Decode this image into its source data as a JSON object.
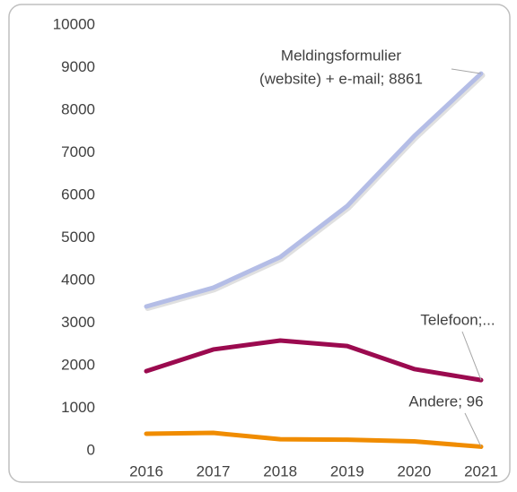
{
  "chart_data": {
    "type": "line",
    "categories": [
      "2016",
      "2017",
      "2018",
      "2019",
      "2020",
      "2021"
    ],
    "series": [
      {
        "color": "#b4bde6",
        "values": [
          3390,
          3830,
          4550,
          5750,
          7390,
          8861
        ]
      },
      {
        "color": "#9b0a4f",
        "values": [
          1870,
          2380,
          2590,
          2460,
          1920,
          1660
        ]
      },
      {
        "color": "#f08c00",
        "values": [
          400,
          420,
          270,
          260,
          220,
          96
        ]
      }
    ],
    "annotations": [
      {
        "series": 0,
        "lines": [
          "Meldingsformulier",
          "(website) + e-mail; 8861"
        ]
      },
      {
        "series": 1,
        "lines": [
          "Telefoon;..."
        ]
      },
      {
        "series": 2,
        "lines": [
          "Andere; 96"
        ]
      }
    ],
    "ylim": [
      0,
      10000
    ],
    "yticks": [
      0,
      1000,
      2000,
      3000,
      4000,
      5000,
      6000,
      7000,
      8000,
      9000,
      10000
    ],
    "grid": false
  }
}
